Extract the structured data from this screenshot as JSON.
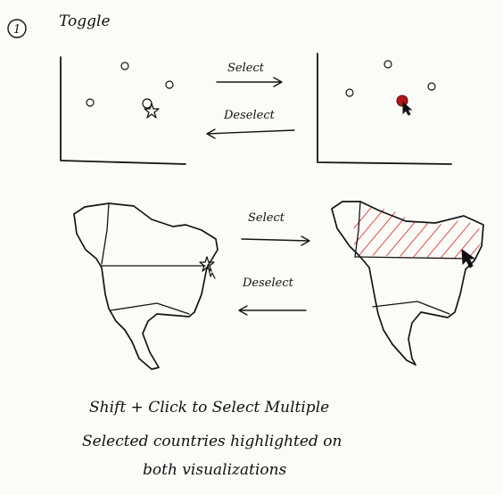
{
  "section": {
    "number": "1",
    "title": "Toggle"
  },
  "top_row": {
    "select_label": "Select",
    "deselect_label": "Deselect"
  },
  "bottom_row": {
    "select_label": "Select",
    "deselect_label": "Deselect"
  },
  "notes": [
    "Shift + Click to Select Multiple",
    "Selected countries highlighted on",
    "both visualizations"
  ],
  "colors": {
    "ink": "#141414",
    "highlight": "#d42020",
    "selected_point": "#b01818"
  },
  "icons": [
    "cursor-icon",
    "star-cursor-icon"
  ]
}
